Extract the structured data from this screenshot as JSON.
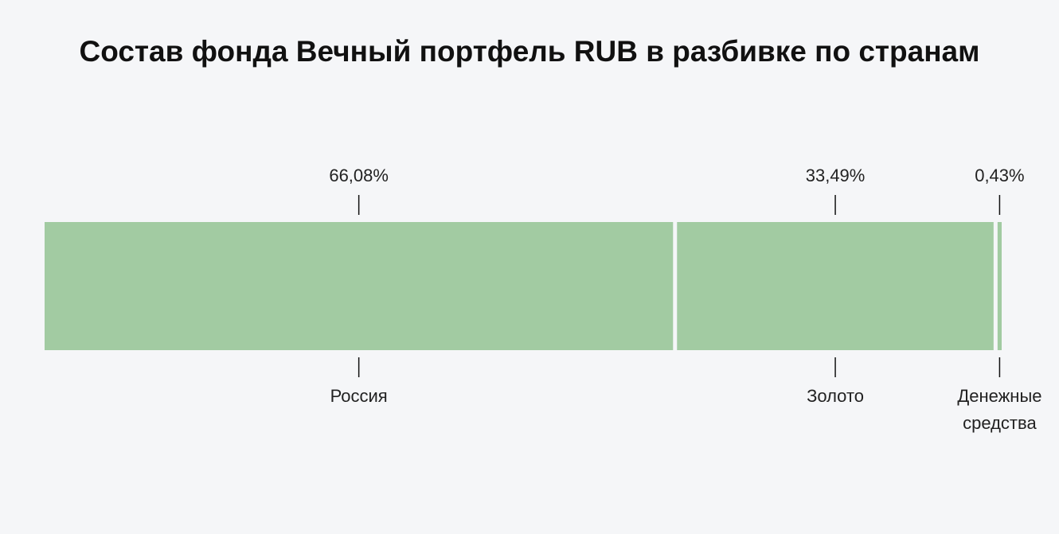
{
  "chart_data": {
    "type": "bar",
    "title": "Состав фонда Вечный портфель RUB в разбивке по странам",
    "categories": [
      "Россия",
      "Золото",
      "Денежные средства"
    ],
    "values": [
      66.08,
      33.49,
      0.43
    ],
    "value_labels": [
      "66,08%",
      "33,49%",
      "0,43%"
    ],
    "color": "#a2cba2"
  }
}
